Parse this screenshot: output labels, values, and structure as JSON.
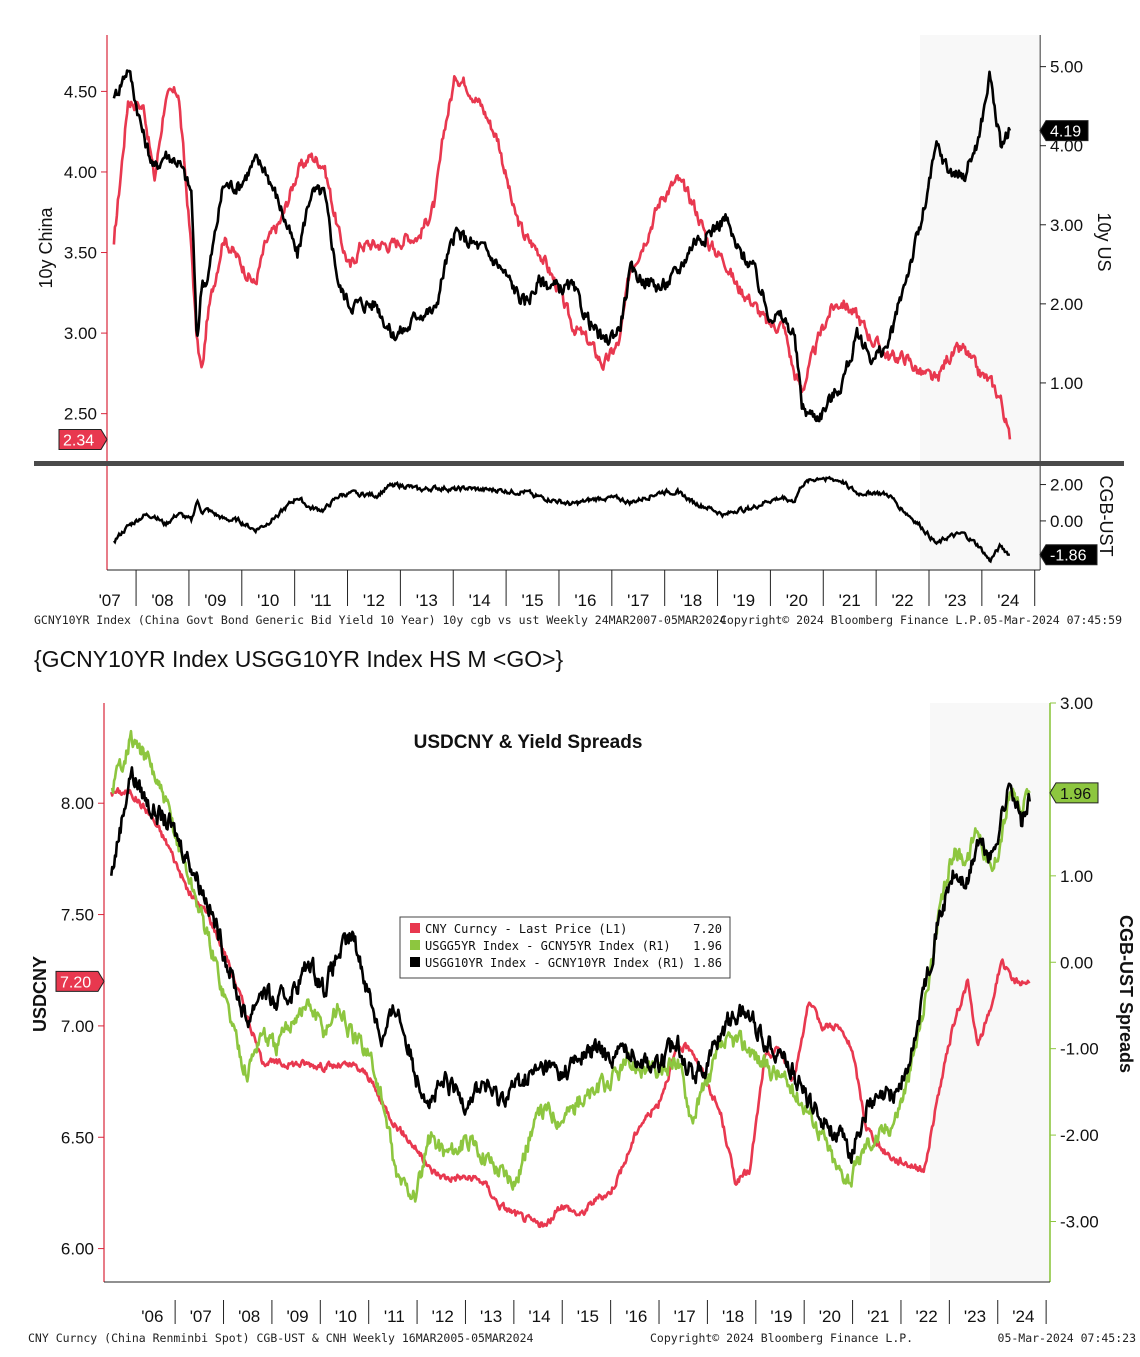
{
  "command_line": "{GCNY10YR Index USGG10YR Index HS M <GO>}",
  "chart_data": [
    {
      "type": "line",
      "title": "",
      "subplots": [
        {
          "ylabel_left": "10y China",
          "ylabel_right": "10y US",
          "left_ticks": [
            "2.50",
            "3.00",
            "3.50",
            "4.00",
            "4.50"
          ],
          "right_ticks": [
            "1.00",
            "2.00",
            "3.00",
            "4.00",
            "5.00"
          ],
          "ylim_left": [
            2.2,
            4.85
          ],
          "ylim_right": [
            0.0,
            5.4
          ],
          "x": [
            2007.23,
            2007.5,
            2007.8,
            2008.0,
            2008.2,
            2008.45,
            2008.7,
            2008.8,
            2008.9,
            2009.0,
            2009.3,
            2009.6,
            2009.9,
            2010.1,
            2010.4,
            2010.7,
            2010.95,
            2011.2,
            2011.5,
            2011.7,
            2011.9,
            2012.2,
            2012.5,
            2012.8,
            2013.0,
            2013.3,
            2013.5,
            2013.7,
            2013.9,
            2014.2,
            2014.5,
            2014.8,
            2015.0,
            2015.3,
            2015.6,
            2015.9,
            2016.2,
            2016.5,
            2016.8,
            2017.0,
            2017.3,
            2017.6,
            2017.9,
            2018.2,
            2018.5,
            2018.8,
            2019.0,
            2019.3,
            2019.6,
            2019.9,
            2020.1,
            2020.25,
            2020.4,
            2020.6,
            2020.8,
            2021.0,
            2021.3,
            2021.6,
            2021.9,
            2022.2,
            2022.5,
            2022.8,
            2023.0,
            2023.3,
            2023.6,
            2023.8,
            2024.0,
            2024.18
          ],
          "series": [
            {
              "name": "",
              "axis": "left",
              "color": "#e8384f",
              "values": [
                3.55,
                4.45,
                4.4,
                3.95,
                4.45,
                4.5,
                3.5,
                2.95,
                2.75,
                3.1,
                3.6,
                3.45,
                3.3,
                3.55,
                3.7,
                4.0,
                4.1,
                4.05,
                3.6,
                3.4,
                3.55,
                3.55,
                3.55,
                3.6,
                3.6,
                3.8,
                4.3,
                4.6,
                4.55,
                4.4,
                4.2,
                3.75,
                3.6,
                3.5,
                3.3,
                3.05,
                2.95,
                2.8,
                2.95,
                3.4,
                3.6,
                3.85,
                3.95,
                3.8,
                3.55,
                3.45,
                3.3,
                3.2,
                3.05,
                3.05,
                2.75,
                2.65,
                2.8,
                3.0,
                3.15,
                3.2,
                3.1,
                2.95,
                2.85,
                2.85,
                2.75,
                2.7,
                2.85,
                2.9,
                2.75,
                2.7,
                2.6,
                2.34
              ]
            },
            {
              "name": "",
              "axis": "right",
              "color": "#000000",
              "values": [
                4.6,
                5.0,
                4.1,
                3.7,
                3.9,
                3.8,
                3.4,
                1.5,
                2.3,
                2.3,
                3.5,
                3.5,
                3.8,
                3.7,
                3.2,
                2.6,
                3.4,
                3.4,
                2.2,
                2.0,
                2.0,
                2.0,
                1.6,
                1.7,
                1.9,
                1.9,
                2.5,
                2.9,
                2.8,
                2.7,
                2.5,
                2.2,
                2.0,
                2.3,
                2.2,
                2.2,
                1.8,
                1.5,
                1.7,
                2.4,
                2.3,
                2.2,
                2.4,
                2.8,
                2.9,
                3.1,
                2.7,
                2.5,
                1.9,
                1.8,
                1.6,
                0.7,
                0.6,
                0.6,
                0.8,
                1.0,
                1.6,
                1.3,
                1.5,
                2.3,
                3.0,
                4.0,
                3.7,
                3.6,
                4.1,
                4.9,
                4.0,
                4.19
              ]
            }
          ],
          "last_value_labels": {
            "left": "2.34",
            "right": "4.19"
          }
        },
        {
          "ylabel_right": "CGB-UST",
          "right_ticks": [
            "0.00",
            "2.00"
          ],
          "ylim_right": [
            -2.7,
            2.8
          ],
          "series": [
            {
              "name": "",
              "color": "#000000",
              "values": [
                -1.1,
                -0.3,
                0.3,
                0.3,
                -0.2,
                0.4,
                0.0,
                1.1,
                0.5,
                0.6,
                0.1,
                0.0,
                -0.5,
                -0.2,
                0.5,
                1.3,
                0.7,
                0.6,
                1.4,
                1.5,
                1.5,
                1.4,
                2.0,
                1.9,
                1.7,
                1.8,
                1.8,
                1.7,
                1.8,
                1.7,
                1.7,
                1.6,
                1.6,
                1.3,
                1.1,
                0.9,
                1.1,
                1.3,
                1.2,
                1.0,
                1.3,
                1.6,
                1.6,
                1.0,
                0.7,
                0.3,
                0.6,
                0.7,
                1.1,
                1.3,
                1.1,
                2.0,
                2.2,
                2.4,
                2.3,
                2.2,
                1.5,
                1.6,
                1.4,
                0.5,
                -0.3,
                -1.3,
                -0.9,
                -0.7,
                -1.4,
                -2.2,
                -1.4,
                -1.86
              ]
            }
          ],
          "last_value_labels": {
            "right": "-1.86"
          }
        }
      ],
      "x_tick_labels": [
        "'07",
        "'08",
        "'09",
        "'10",
        "'11",
        "'12",
        "'13",
        "'14",
        "'15",
        "'16",
        "'17",
        "'18",
        "'19",
        "'20",
        "'21",
        "'22",
        "'23",
        "'24"
      ],
      "footer": {
        "description": "GCNY10YR Index (China Govt Bond Generic Bid Yield 10 Year) 10y cgb vs ust  Weekly 24MAR2007-05MAR2024",
        "copyright": "Copyright© 2024 Bloomberg Finance L.P.",
        "timestamp": "05-Mar-2024 07:45:59"
      }
    },
    {
      "type": "line",
      "title": "USDCNY & Yield Spreads",
      "ylabel_left": "USDCNY",
      "ylabel_right": "CGB-UST Spreads",
      "left_ticks": [
        "6.00",
        "6.50",
        "7.00",
        "7.50",
        "8.00"
      ],
      "right_ticks": [
        "-3.00",
        "-2.00",
        "-1.00",
        "0.00",
        "1.00",
        "2.00",
        "3.00"
      ],
      "ylim_left": [
        5.85,
        8.45
      ],
      "ylim_right": [
        -3.7,
        3.0
      ],
      "x": [
        2005.2,
        2005.6,
        2006.0,
        2006.4,
        2006.8,
        2007.2,
        2007.6,
        2008.0,
        2008.3,
        2008.6,
        2009.0,
        2009.3,
        2009.6,
        2009.9,
        2010.2,
        2010.5,
        2010.8,
        2011.1,
        2011.5,
        2011.8,
        2012.1,
        2012.5,
        2012.9,
        2013.2,
        2013.6,
        2013.9,
        2014.2,
        2014.5,
        2014.9,
        2015.2,
        2015.5,
        2015.8,
        2016.1,
        2016.5,
        2016.9,
        2017.2,
        2017.5,
        2017.8,
        2018.1,
        2018.4,
        2018.7,
        2019.0,
        2019.3,
        2019.6,
        2019.9,
        2020.2,
        2020.5,
        2020.8,
        2021.1,
        2021.4,
        2021.7,
        2022.0,
        2022.3,
        2022.6,
        2022.9,
        2023.1,
        2023.4,
        2023.6,
        2023.8,
        2024.0,
        2024.18
      ],
      "series": [
        {
          "name": "CNY Curncy - Last Price (L1)",
          "axis": "left",
          "color": "#e8384f",
          "last": "7.20",
          "values": [
            8.05,
            8.05,
            7.95,
            7.8,
            7.6,
            7.5,
            7.3,
            7.05,
            6.85,
            6.83,
            6.83,
            6.83,
            6.82,
            6.82,
            6.82,
            6.78,
            6.65,
            6.55,
            6.45,
            6.35,
            6.32,
            6.32,
            6.3,
            6.2,
            6.15,
            6.12,
            6.1,
            6.2,
            6.15,
            6.22,
            6.25,
            6.38,
            6.55,
            6.65,
            6.9,
            6.9,
            6.75,
            6.6,
            6.3,
            6.35,
            6.85,
            6.9,
            6.75,
            7.1,
            7.0,
            7.0,
            6.9,
            6.55,
            6.45,
            6.4,
            6.38,
            6.35,
            6.7,
            7.0,
            7.2,
            6.9,
            7.1,
            7.3,
            7.2,
            7.2,
            7.2
          ]
        },
        {
          "name": "USGG5YR Index - GCNY5YR Index (R1)",
          "axis": "right",
          "color": "#8dc63f",
          "last": "1.96",
          "values": [
            2.0,
            2.6,
            2.3,
            1.7,
            1.0,
            0.3,
            -0.5,
            -1.3,
            -0.8,
            -1.0,
            -0.6,
            -0.5,
            -0.8,
            -0.5,
            -0.9,
            -1.0,
            -1.6,
            -2.5,
            -2.7,
            -2.0,
            -2.2,
            -2.1,
            -2.2,
            -2.4,
            -2.5,
            -1.9,
            -1.7,
            -1.8,
            -1.6,
            -1.5,
            -1.4,
            -1.2,
            -1.2,
            -1.3,
            -1.1,
            -1.8,
            -1.4,
            -1.0,
            -0.9,
            -1.0,
            -1.2,
            -1.3,
            -1.5,
            -1.7,
            -2.0,
            -2.4,
            -2.5,
            -2.1,
            -2.0,
            -1.8,
            -1.3,
            -0.5,
            0.5,
            1.3,
            1.2,
            1.6,
            1.0,
            1.5,
            2.0,
            1.7,
            1.96
          ]
        },
        {
          "name": "USGG10YR Index - GCNY10YR Index (R1)",
          "axis": "right",
          "color": "#000000",
          "last": "1.86",
          "values": [
            1.0,
            2.2,
            1.8,
            1.6,
            1.2,
            0.7,
            0.0,
            -0.7,
            -0.3,
            -0.5,
            -0.3,
            0.0,
            -0.3,
            0.1,
            0.3,
            -0.3,
            -0.9,
            -0.5,
            -1.3,
            -1.6,
            -1.4,
            -1.6,
            -1.4,
            -1.6,
            -1.4,
            -1.3,
            -1.2,
            -1.3,
            -1.1,
            -1.0,
            -1.1,
            -1.0,
            -1.1,
            -1.2,
            -0.9,
            -1.3,
            -1.2,
            -0.8,
            -0.6,
            -0.6,
            -0.9,
            -1.0,
            -1.3,
            -1.6,
            -1.8,
            -2.0,
            -2.2,
            -1.7,
            -1.6,
            -1.5,
            -1.2,
            -0.3,
            0.5,
            1.0,
            0.9,
            1.4,
            1.2,
            1.7,
            2.1,
            1.6,
            1.86
          ]
        }
      ],
      "x_tick_labels": [
        "'06",
        "'07",
        "'08",
        "'09",
        "'10",
        "'11",
        "'12",
        "'13",
        "'14",
        "'15",
        "'16",
        "'17",
        "'18",
        "'19",
        "'20",
        "'21",
        "'22",
        "'23",
        "'24"
      ],
      "last_value_labels": {
        "left": "7.20",
        "right": "1.96"
      },
      "footer": {
        "description": "CNY Curncy (China Renminbi Spot) CGB-UST & CNH  Weekly 16MAR2005-05MAR2024",
        "copyright": "Copyright© 2024 Bloomberg Finance L.P.",
        "timestamp": "05-Mar-2024 07:45:23"
      }
    }
  ]
}
